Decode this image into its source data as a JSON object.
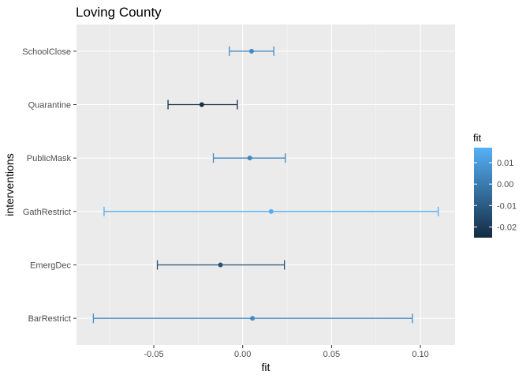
{
  "chart_data": {
    "type": "errorbar",
    "title": "Loving County",
    "xlabel": "fit",
    "ylabel": "interventions",
    "xlim": [
      -0.0935,
      0.1195
    ],
    "x_ticks": [
      -0.05,
      0.0,
      0.05,
      0.1
    ],
    "x_tick_labels": [
      "-0.05",
      "0.00",
      "0.05",
      "0.10"
    ],
    "categories": [
      "SchoolClose",
      "Quarantine",
      "PublicMask",
      "GathRestrict",
      "EmergDec",
      "BarRestrict"
    ],
    "points": [
      {
        "category": "SchoolClose",
        "fit": 0.005,
        "lower": -0.0075,
        "upper": 0.0175
      },
      {
        "category": "Quarantine",
        "fit": -0.023,
        "lower": -0.042,
        "upper": -0.003
      },
      {
        "category": "PublicMask",
        "fit": 0.004,
        "lower": -0.0165,
        "upper": 0.024
      },
      {
        "category": "GathRestrict",
        "fit": 0.016,
        "lower": -0.078,
        "upper": 0.11
      },
      {
        "category": "EmergDec",
        "fit": -0.0125,
        "lower": -0.048,
        "upper": 0.0235
      },
      {
        "category": "BarRestrict",
        "fit": 0.0055,
        "lower": -0.084,
        "upper": 0.0955
      }
    ],
    "grid": true,
    "legend": {
      "title": "fit",
      "position": "right",
      "ticks": [
        0.01,
        0.0,
        -0.01,
        -0.02
      ],
      "tick_labels": [
        "0.01",
        "0.00",
        "-0.01",
        "-0.02"
      ],
      "range": [
        -0.025,
        0.017
      ],
      "color_low": "#132B43",
      "color_high": "#56B1F7"
    },
    "colors": {
      "panel_background": "#EBEBEB",
      "grid": "#FFFFFF"
    }
  }
}
